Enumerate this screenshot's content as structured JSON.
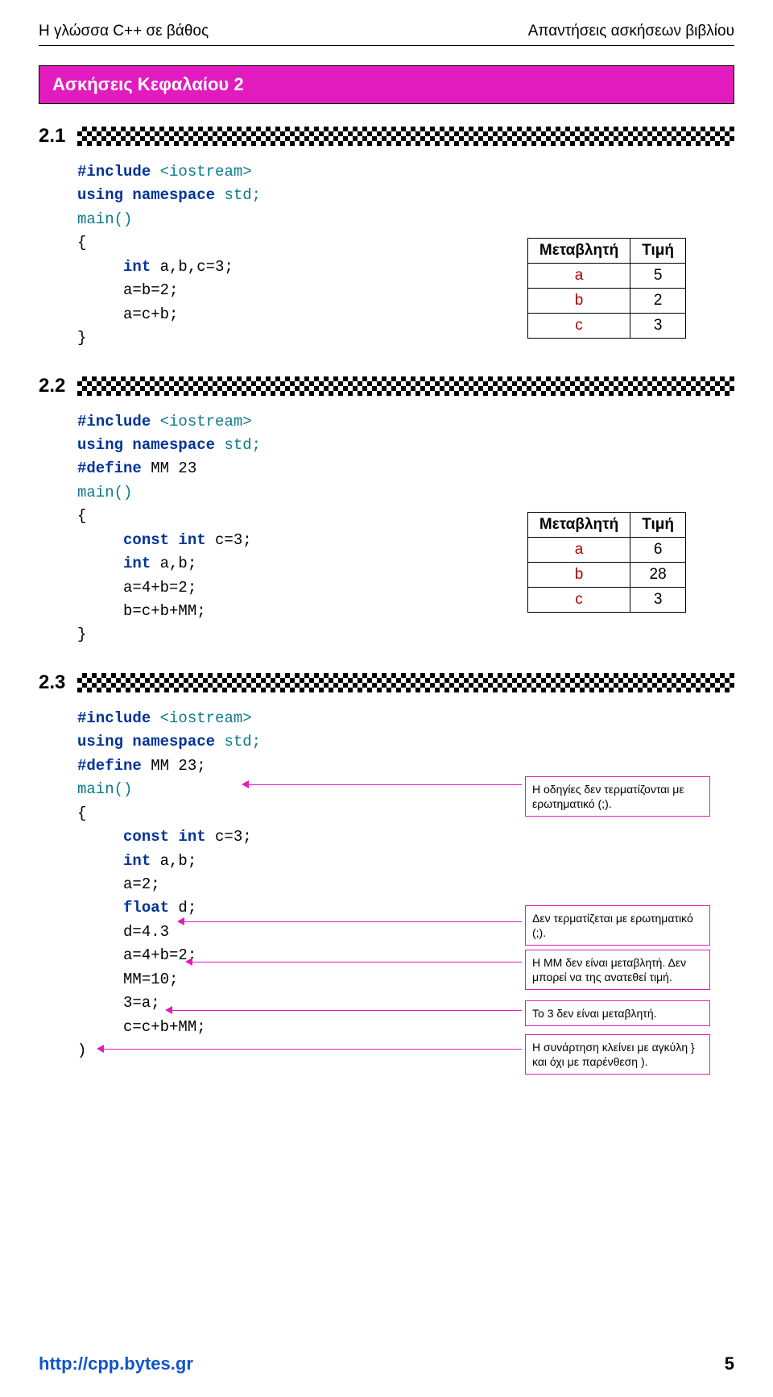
{
  "header": {
    "left": "Η γλώσσα C++ σε βάθος",
    "right": "Απαντήσεις ασκήσεων βιβλίου"
  },
  "chapter": "Ασκήσεις Κεφαλαίου 2",
  "ex1": {
    "num": "2.1",
    "lines": [
      [
        {
          "t": "#include ",
          "c": "b"
        },
        {
          "t": "<iostream>",
          "c": "t"
        }
      ],
      [
        {
          "t": "using namespace ",
          "c": "b"
        },
        {
          "t": "std;",
          "c": "t"
        }
      ],
      [
        {
          "t": "main()",
          "c": "t"
        }
      ],
      [
        {
          "t": "{",
          "c": ""
        }
      ],
      [
        {
          "t": "     int ",
          "c": "b"
        },
        {
          "t": "a,b,c=3;",
          "c": ""
        }
      ],
      [
        {
          "t": "     a=b=2;",
          "c": ""
        }
      ],
      [
        {
          "t": "     a=c+b;",
          "c": ""
        }
      ],
      [
        {
          "t": "}",
          "c": ""
        }
      ]
    ],
    "table": {
      "head": [
        "Μεταβλητή",
        "Τιμή"
      ],
      "rows": [
        [
          "a",
          "5"
        ],
        [
          "b",
          "2"
        ],
        [
          "c",
          "3"
        ]
      ]
    }
  },
  "ex2": {
    "num": "2.2",
    "lines": [
      [
        {
          "t": "#include ",
          "c": "b"
        },
        {
          "t": "<iostream>",
          "c": "t"
        }
      ],
      [
        {
          "t": "using namespace ",
          "c": "b"
        },
        {
          "t": "std;",
          "c": "t"
        }
      ],
      [
        {
          "t": "#define ",
          "c": "b"
        },
        {
          "t": "MM 23",
          "c": ""
        }
      ],
      [
        {
          "t": "main()",
          "c": "t"
        }
      ],
      [
        {
          "t": "{",
          "c": ""
        }
      ],
      [
        {
          "t": "     const int ",
          "c": "b"
        },
        {
          "t": "c=3;",
          "c": ""
        }
      ],
      [
        {
          "t": "     int ",
          "c": "b"
        },
        {
          "t": "a,b;",
          "c": ""
        }
      ],
      [
        {
          "t": "     a=4+b=2;",
          "c": ""
        }
      ],
      [
        {
          "t": "     b=c+b+MM;",
          "c": ""
        }
      ],
      [
        {
          "t": "}",
          "c": ""
        }
      ]
    ],
    "table": {
      "head": [
        "Μεταβλητή",
        "Τιμή"
      ],
      "rows": [
        [
          "a",
          "6"
        ],
        [
          "b",
          "28"
        ],
        [
          "c",
          "3"
        ]
      ]
    }
  },
  "ex3": {
    "num": "2.3",
    "lines": [
      [
        {
          "t": "#include ",
          "c": "b"
        },
        {
          "t": "<iostream>",
          "c": "t"
        }
      ],
      [
        {
          "t": "using namespace ",
          "c": "b"
        },
        {
          "t": "std;",
          "c": "t"
        }
      ],
      [
        {
          "t": "#define ",
          "c": "b"
        },
        {
          "t": "MM 23;",
          "c": ""
        }
      ],
      [
        {
          "t": "main()",
          "c": "t"
        }
      ],
      [
        {
          "t": "{",
          "c": ""
        }
      ],
      [
        {
          "t": "     const int ",
          "c": "b"
        },
        {
          "t": "c=3;",
          "c": ""
        }
      ],
      [
        {
          "t": "     int ",
          "c": "b"
        },
        {
          "t": "a,b;",
          "c": ""
        }
      ],
      [
        {
          "t": "     a=2;",
          "c": ""
        }
      ],
      [
        {
          "t": "     float ",
          "c": "b"
        },
        {
          "t": "d;",
          "c": ""
        }
      ],
      [
        {
          "t": "     d=4.3",
          "c": ""
        }
      ],
      [
        {
          "t": "     a=4+b=2;",
          "c": ""
        }
      ],
      [
        {
          "t": "     MM=10;",
          "c": ""
        }
      ],
      [
        {
          "t": "     3=a;",
          "c": ""
        }
      ],
      [
        {
          "t": "     c=c+b+MM;",
          "c": ""
        }
      ],
      [
        {
          "t": ")",
          "c": ""
        }
      ]
    ],
    "callouts": [
      "Η οδηγίες δεν τερματίζονται με ερωτηματικό (;).",
      "Δεν τερματίζεται με ερωτηματικό (;).",
      "Η ΜΜ δεν είναι μεταβλητή. Δεν μπορεί να της ανατεθεί τιμή.",
      "Το 3 δεν είναι μεταβλητή.",
      "Η συνάρτηση κλείνει με αγκύλη } και όχι με παρένθεση )."
    ]
  },
  "footer": {
    "url": "http://cpp.bytes.gr",
    "page": "5"
  },
  "colors": {
    "accent": "#e21bbf",
    "kw_blue": "#003399",
    "kw_teal": "#0b7a8a",
    "tv_red": "#b10000"
  }
}
